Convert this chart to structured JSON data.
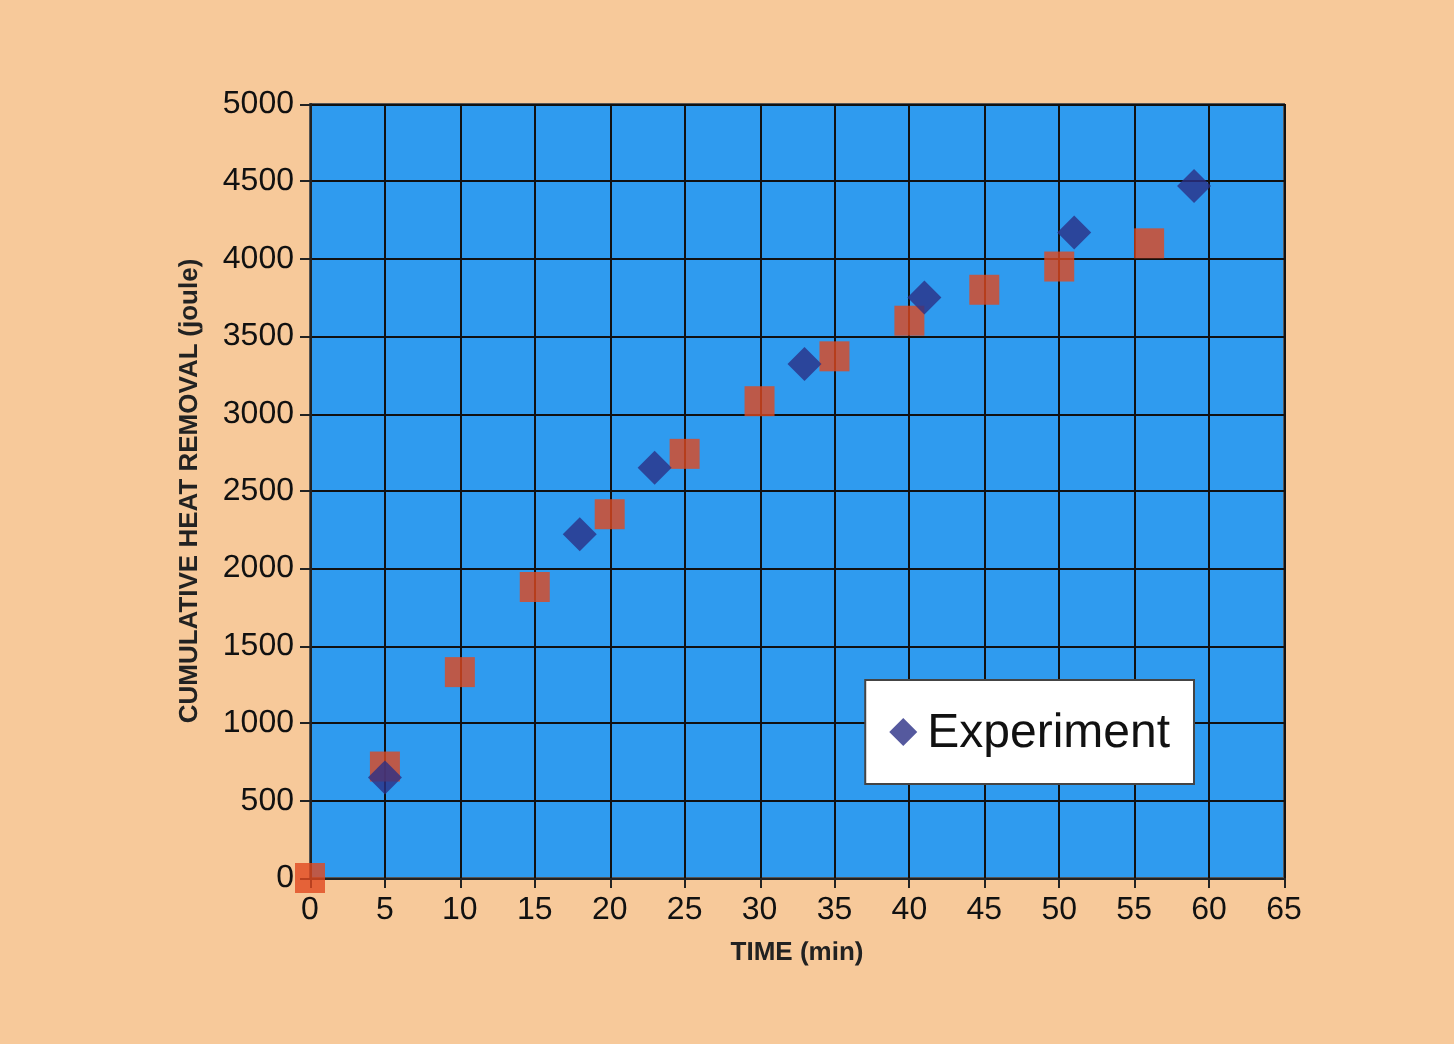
{
  "chart_data": {
    "type": "scatter",
    "xlabel": "TIME (min)",
    "ylabel": "CUMULATIVE HEAT REMOVAL (joule)",
    "xlim": [
      0,
      65
    ],
    "xticks": [
      0,
      5,
      10,
      15,
      20,
      25,
      30,
      35,
      40,
      45,
      50,
      55,
      60,
      65
    ],
    "ylim": [
      0,
      5000
    ],
    "yticks": [
      0,
      500,
      1000,
      1500,
      2000,
      2500,
      3000,
      3500,
      4000,
      4500,
      5000
    ],
    "grid": true,
    "legend": "bottom right",
    "series": [
      {
        "name": "Experiment",
        "color": "#2a2f86",
        "marker": "diamond",
        "x": [
          5,
          18,
          23,
          33,
          41,
          51,
          59
        ],
        "values": [
          650,
          2220,
          2650,
          3320,
          3750,
          4170,
          4470
        ]
      },
      {
        "color": "#e0481f",
        "marker": "square",
        "x": [
          0,
          5,
          10,
          15,
          20,
          25,
          30,
          35,
          40,
          45,
          50,
          56
        ],
        "values": [
          0,
          720,
          1330,
          1880,
          2350,
          2740,
          3080,
          3370,
          3600,
          3800,
          3950,
          4100
        ]
      }
    ]
  }
}
